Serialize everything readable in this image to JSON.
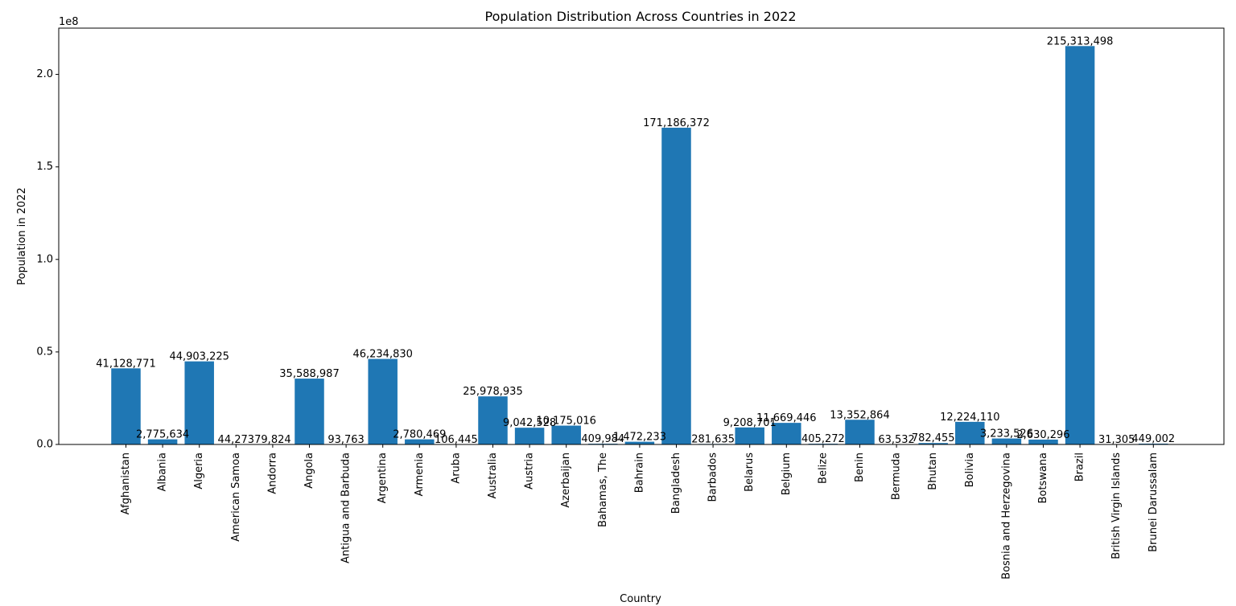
{
  "chart_data": {
    "type": "bar",
    "title": "Population Distribution Across Countries in 2022",
    "xlabel": "Country",
    "ylabel": "Population in 2022",
    "offset_label": "1e8",
    "ylim": [
      0,
      225000000
    ],
    "y_ticks": [
      {
        "value": 0,
        "label": "0.0"
      },
      {
        "value": 50000000,
        "label": "0.5"
      },
      {
        "value": 100000000,
        "label": "1.0"
      },
      {
        "value": 150000000,
        "label": "1.5"
      },
      {
        "value": 200000000,
        "label": "2.0"
      }
    ],
    "grid": false,
    "bar_color": "#1f77b4",
    "categories": [
      "Afghanistan",
      "Albania",
      "Algeria",
      "American Samoa",
      "Andorra",
      "Angola",
      "Antigua and Barbuda",
      "Argentina",
      "Armenia",
      "Aruba",
      "Australia",
      "Austria",
      "Azerbaijan",
      "Bahamas, The",
      "Bahrain",
      "Bangladesh",
      "Barbados",
      "Belarus",
      "Belgium",
      "Belize",
      "Benin",
      "Bermuda",
      "Bhutan",
      "Bolivia",
      "Bosnia and Herzegovina",
      "Botswana",
      "Brazil",
      "British Virgin Islands",
      "Brunei Darussalam"
    ],
    "values": [
      41128771,
      2775634,
      44903225,
      44273,
      79824,
      35588987,
      93763,
      46234830,
      2780469,
      106445,
      25978935,
      9042528,
      10175016,
      409984,
      1472233,
      171186372,
      281635,
      9208701,
      11669446,
      405272,
      13352864,
      63532,
      782455,
      12224110,
      3233526,
      2630296,
      215313498,
      31305,
      449002
    ],
    "data_labels": [
      "41,128,771",
      "2,775,634",
      "44,903,225",
      "44,273",
      "79,824",
      "35,588,987",
      "93,763",
      "46,234,830",
      "2,780,469",
      "106,445",
      "25,978,935",
      "9,042,528",
      "10,175,016",
      "409,984",
      "1,472,233",
      "171,186,372",
      "281,635",
      "9,208,701",
      "11,669,446",
      "405,272",
      "13,352,864",
      "63,532",
      "782,455",
      "12,224,110",
      "3,233,526",
      "2,630,296",
      "215,313,498",
      "31,305",
      "449,002"
    ]
  }
}
